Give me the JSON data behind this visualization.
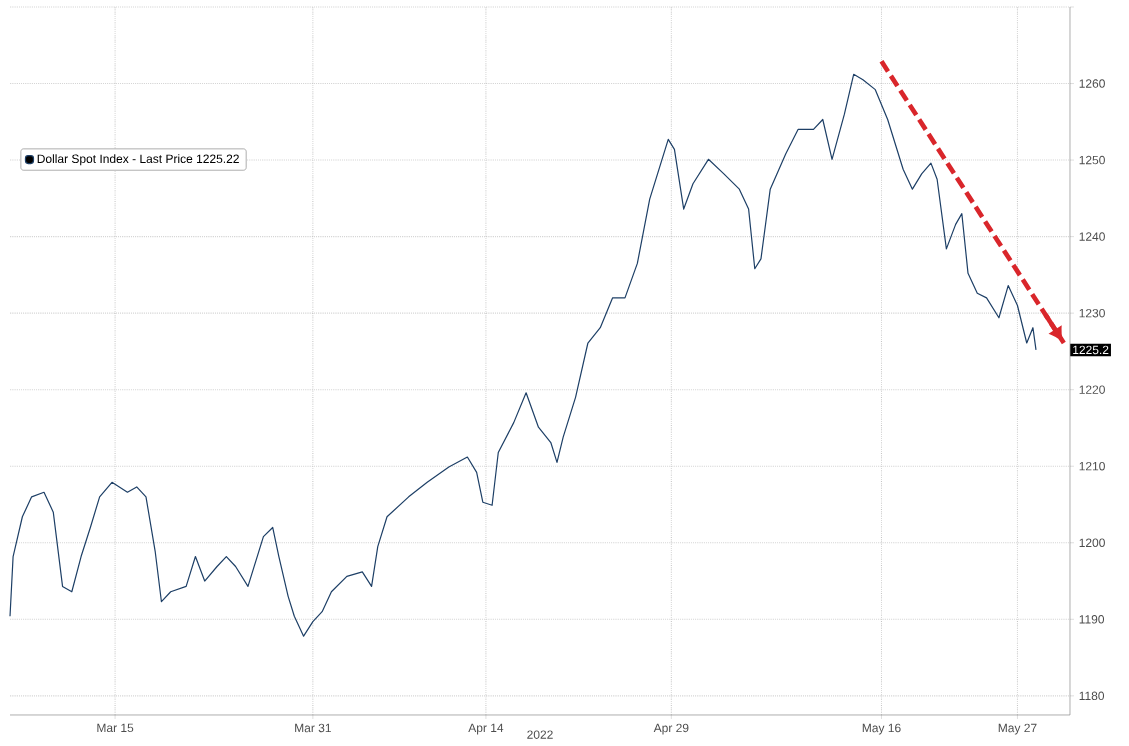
{
  "chart_data": {
    "type": "line",
    "xlabel": "2022",
    "legend": "top left",
    "grid": true,
    "xlim": [
      "2022-03-06T12:00",
      "2022-05-31T06:00"
    ],
    "ylim": [
      1177.5,
      1270
    ],
    "xticks": [
      {
        "value": "2022-03-15",
        "label": "Mar 15"
      },
      {
        "value": "2022-03-31",
        "label": "Mar 31"
      },
      {
        "value": "2022-04-14",
        "label": "Apr 14"
      },
      {
        "value": "2022-04-29",
        "label": "Apr 29"
      },
      {
        "value": "2022-05-16",
        "label": "May 16"
      },
      {
        "value": "2022-05-27",
        "label": "May 27"
      }
    ],
    "yticks": [
      1180,
      1190,
      1200,
      1210,
      1220,
      1230,
      1240,
      1250,
      1260,
      {
        "value": 1270,
        "label": null
      }
    ],
    "annotations": [
      {
        "text": "1225.2",
        "y": 1225.2
      }
    ],
    "series": [
      {
        "name": "Dollar Spot Index - Last Price 1225.22",
        "color": "#1d3f66",
        "line_style": "solid",
        "x": [
          "2022-03-06T12:00",
          "2022-03-06T18:00",
          "2022-03-07T12:00",
          "2022-03-08T06:00",
          "2022-03-09T06:00",
          "2022-03-10T00:00",
          "2022-03-10T18:00",
          "2022-03-11T12:00",
          "2022-03-12T06:00",
          "2022-03-13T00:00",
          "2022-03-13T18:00",
          "2022-03-14T18:00",
          "2022-03-16T00:00",
          "2022-03-16T18:00",
          "2022-03-17T12:00",
          "2022-03-18T06:00",
          "2022-03-18T18:00",
          "2022-03-19T12:00",
          "2022-03-20T18:00",
          "2022-03-21T12:00",
          "2022-03-22T06:00",
          "2022-03-23T06:00",
          "2022-03-24T00:00",
          "2022-03-24T18:00",
          "2022-03-25T18:00",
          "2022-03-27T00:00",
          "2022-03-27T18:00",
          "2022-03-28T06:00",
          "2022-03-29T00:00",
          "2022-03-29T12:00",
          "2022-03-30T06:00",
          "2022-03-31T00:00",
          "2022-03-31T18:00",
          "2022-04-01T12:00",
          "2022-04-02T18:00",
          "2022-04-04T00:00",
          "2022-04-04T18:00",
          "2022-04-05T06:00",
          "2022-04-06T00:00",
          "2022-04-07T18:00",
          "2022-04-09T06:00",
          "2022-04-11T00:00",
          "2022-04-12T12:00",
          "2022-04-13T06:00",
          "2022-04-13T18:00",
          "2022-04-14T12:00",
          "2022-04-15T00:00",
          "2022-04-16T06:00",
          "2022-04-17T06:00",
          "2022-04-18T06:00",
          "2022-04-19T06:00",
          "2022-04-19T18:00",
          "2022-04-20T06:00",
          "2022-04-21T06:00",
          "2022-04-22T06:00",
          "2022-04-23T06:00",
          "2022-04-24T06:00",
          "2022-04-25T06:00",
          "2022-04-26T06:00",
          "2022-04-27T06:00",
          "2022-04-28T18:00",
          "2022-04-29T06:00",
          "2022-04-30T00:00",
          "2022-04-30T18:00",
          "2022-05-02T00:00",
          "2022-05-03T06:00",
          "2022-05-04T12:00",
          "2022-05-05T06:00",
          "2022-05-05T18:00",
          "2022-05-06T06:00",
          "2022-05-07T00:00",
          "2022-05-08T06:00",
          "2022-05-09T06:00",
          "2022-05-10T12:00",
          "2022-05-11T06:00",
          "2022-05-12T00:00",
          "2022-05-13T00:00",
          "2022-05-13T18:00",
          "2022-05-14T12:00",
          "2022-05-15T12:00",
          "2022-05-16T12:00",
          "2022-05-17T18:00",
          "2022-05-18T12:00",
          "2022-05-19T06:00",
          "2022-05-20T00:00",
          "2022-05-20T12:00",
          "2022-05-21T06:00",
          "2022-05-22T00:00",
          "2022-05-22T12:00",
          "2022-05-23T00:00",
          "2022-05-23T18:00",
          "2022-05-24T12:00",
          "2022-05-25T12:00",
          "2022-05-26T06:00",
          "2022-05-27T00:00",
          "2022-05-27T18:00",
          "2022-05-28T06:00",
          "2022-05-28T12:00"
        ],
        "values": [
          1190.4,
          1198.2,
          1203.4,
          1206,
          1206.6,
          1204,
          1194.3,
          1193.6,
          1198.2,
          1202,
          1206,
          1207.9,
          1206.6,
          1207.3,
          1206,
          1198.8,
          1192.3,
          1193.6,
          1194.3,
          1198.2,
          1195,
          1196.9,
          1198.2,
          1196.9,
          1194.3,
          1200.8,
          1202,
          1198.2,
          1193,
          1190.4,
          1187.8,
          1189.7,
          1191,
          1193.6,
          1195.6,
          1196.2,
          1194.3,
          1199.5,
          1203.4,
          1206,
          1207.9,
          1209.9,
          1211.2,
          1209.2,
          1205.3,
          1204.9,
          1211.8,
          1215.7,
          1219.6,
          1215.1,
          1213.1,
          1210.5,
          1213.8,
          1219,
          1226.1,
          1228.1,
          1232,
          1232,
          1236.5,
          1244.9,
          1252.7,
          1251.4,
          1243.6,
          1246.9,
          1250.1,
          1248.2,
          1246.2,
          1243.6,
          1235.8,
          1237.1,
          1246.2,
          1250.8,
          1254,
          1254,
          1255.3,
          1250.1,
          1256,
          1261.2,
          1260.5,
          1259.2,
          1255.3,
          1248.8,
          1246.2,
          1248.2,
          1249.6,
          1247.5,
          1238.4,
          1241.6,
          1243,
          1235.2,
          1232.6,
          1232,
          1229.4,
          1233.6,
          1231,
          1226.1,
          1228.1,
          1225.2
        ]
      },
      {
        "color": "#d9262b",
        "line_style": "dashed",
        "x": [
          "2022-05-16T00:00",
          "2022-05-30T18:00"
        ],
        "values": [
          1262.9,
          1226.1
        ]
      }
    ]
  }
}
